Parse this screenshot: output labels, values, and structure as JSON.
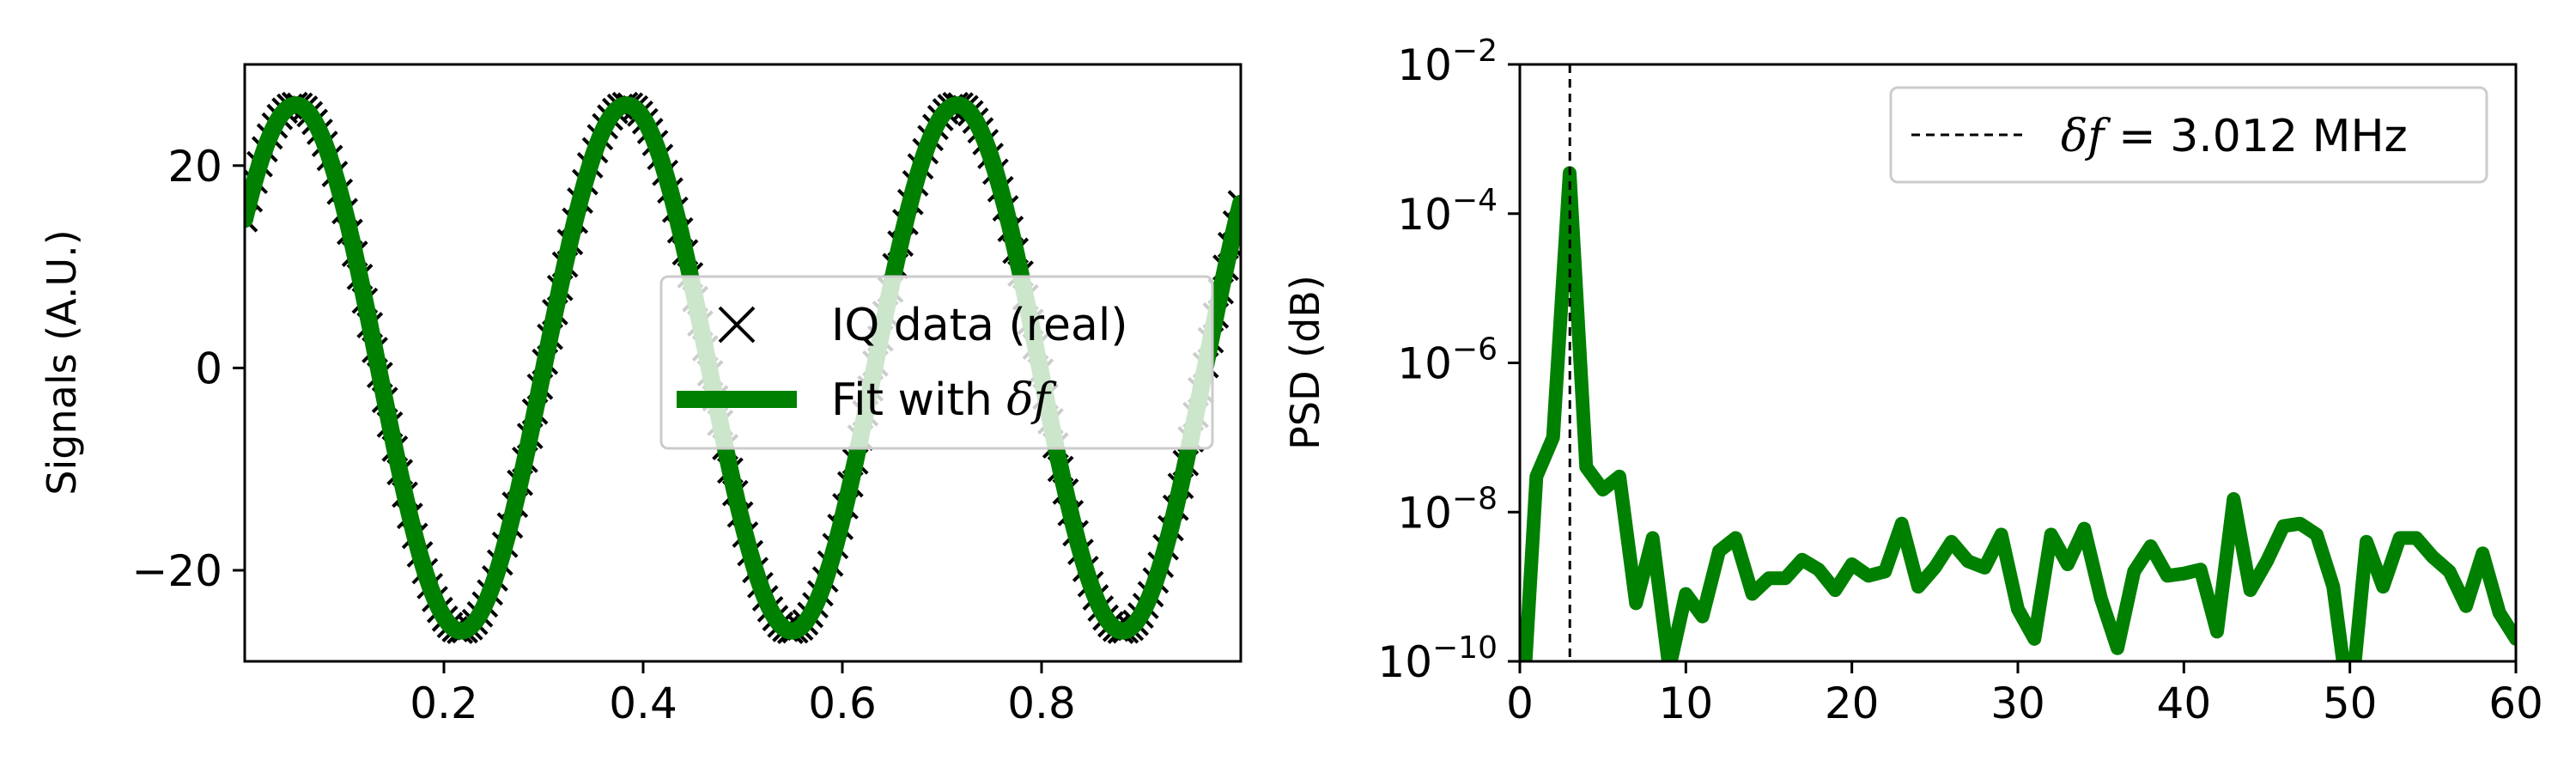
{
  "chart_data": [
    {
      "type": "scatter",
      "title": "",
      "xlabel": "",
      "ylabel": "Signals (A.U.)",
      "xlim": [
        0.0,
        1.0
      ],
      "ylim": [
        -29,
        30
      ],
      "xticks": [
        0.2,
        0.4,
        0.6,
        0.8
      ],
      "xtick_labels": [
        "0.2",
        "0.4",
        "0.6",
        "0.8"
      ],
      "yticks": [
        -20,
        0,
        20
      ],
      "ytick_labels": [
        "−20",
        "0",
        "20"
      ],
      "legend_placement": "center-right",
      "series": [
        {
          "name": "IQ data (real)",
          "marker": "x",
          "color": "#000000",
          "model": "sinusoid",
          "amplitude": 26,
          "frequency": 3.012,
          "phase": -0.97,
          "x_start": 0.0,
          "x_end": 1.0,
          "n_points": 200
        },
        {
          "name": "Fit with δf",
          "name_plain": "Fit with ",
          "name_symbol": "δf",
          "line": "solid",
          "color": "#008000",
          "model": "sinusoid",
          "amplitude": 26,
          "frequency": 3.012,
          "phase": -0.97
        }
      ]
    },
    {
      "type": "line",
      "title": "",
      "xlabel": "",
      "ylabel": "PSD (dB)",
      "xlim": [
        0,
        60
      ],
      "ylim": [
        1e-10,
        0.01
      ],
      "yscale": "log",
      "xticks": [
        0,
        10,
        20,
        30,
        40,
        50,
        60
      ],
      "xtick_labels": [
        "0",
        "10",
        "20",
        "30",
        "40",
        "50",
        "60"
      ],
      "yticks": [
        1e-10,
        1e-08,
        1e-06,
        0.0001,
        0.01
      ],
      "ytick_labels": [
        {
          "base": "10",
          "exp": "−10"
        },
        {
          "base": "10",
          "exp": "−8"
        },
        {
          "base": "10",
          "exp": "−6"
        },
        {
          "base": "10",
          "exp": "−4"
        },
        {
          "base": "10",
          "exp": "−2"
        }
      ],
      "legend_placement": "upper-right",
      "vline": {
        "x": 3.012,
        "style": "dashed",
        "color": "#000000",
        "label": "δf = 3.012 MHz",
        "label_symbol": "δf",
        "label_rest": " = 3.012 MHz"
      },
      "series": [
        {
          "name": "PSD",
          "color": "#008000",
          "x": [
            0,
            1,
            2,
            3,
            4,
            5,
            6,
            7,
            8,
            9,
            10,
            11,
            12,
            13,
            14,
            15,
            16,
            17,
            18,
            19,
            20,
            21,
            22,
            23,
            24,
            25,
            26,
            27,
            28,
            29,
            30,
            31,
            32,
            33,
            34,
            35,
            36,
            37,
            38,
            39,
            40,
            41,
            42,
            43,
            44,
            45,
            46,
            47,
            48,
            49,
            50,
            51,
            52,
            53,
            54,
            55,
            56,
            57,
            58,
            59,
            60
          ],
          "y": [
            5e-12,
            3e-08,
            1e-07,
            0.00035,
            4e-08,
            2e-08,
            3e-08,
            6e-10,
            4.5e-09,
            8e-11,
            8e-10,
            4e-10,
            3e-09,
            4.5e-09,
            8e-10,
            1.3e-09,
            1.3e-09,
            2.3e-09,
            1.7e-09,
            9e-10,
            2e-09,
            1.4e-09,
            1.6e-09,
            7e-09,
            1e-09,
            1.8e-09,
            4e-09,
            2.2e-09,
            1.8e-09,
            5e-09,
            5e-10,
            2e-10,
            5e-09,
            2e-09,
            6e-09,
            7e-10,
            1.5e-10,
            1.6e-09,
            3.5e-09,
            1.4e-09,
            1.5e-09,
            1.7e-09,
            2.5e-10,
            1.5e-08,
            9e-10,
            2.2e-09,
            6.5e-09,
            7e-09,
            5e-09,
            1e-09,
            2e-11,
            4e-09,
            1e-09,
            4.5e-09,
            4.5e-09,
            2.5e-09,
            1.6e-09,
            5.5e-10,
            2.8e-09,
            4.5e-10,
            2e-10
          ]
        }
      ]
    }
  ]
}
